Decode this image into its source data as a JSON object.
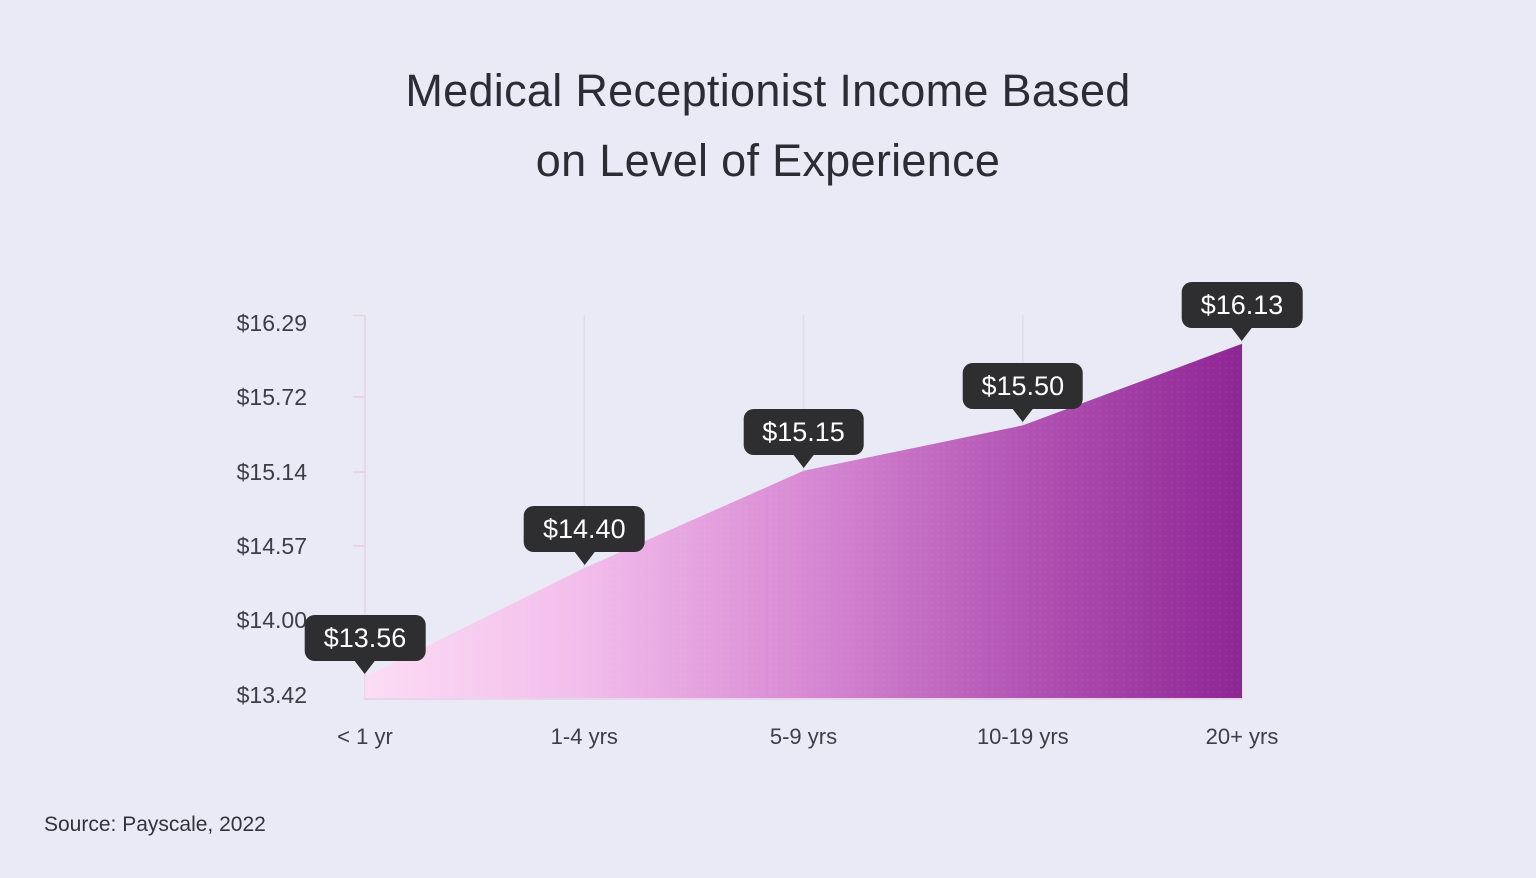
{
  "page": {
    "title_line1": "Medical Receptionist Income Based",
    "title_line2": "on Level of Experience",
    "source": "Source: Payscale, 2022",
    "background": "#eaeaf6"
  },
  "chart_data": {
    "type": "area",
    "title": "Medical Receptionist Income Based on Level of Experience",
    "categories": [
      "< 1 yr",
      "1-4 yrs",
      "5-9 yrs",
      "10-19 yrs",
      "20+ yrs"
    ],
    "values": [
      13.56,
      14.4,
      15.15,
      15.5,
      16.13
    ],
    "value_labels": [
      "$13.56",
      "$14.40",
      "$15.15",
      "$15.50",
      "$16.13"
    ],
    "yticks": [
      16.29,
      15.72,
      15.14,
      14.57,
      14.0,
      13.42
    ],
    "ytick_labels": [
      "$16.29",
      "$15.72",
      "$15.14",
      "$14.57",
      "$14.00",
      "$13.42"
    ],
    "ylim": [
      13.42,
      16.29
    ],
    "xlabel": "",
    "ylabel": "",
    "grid": "vertical category gridlines",
    "legend": "none",
    "source": "Source: Payscale, 2022",
    "colors": {
      "area_gradient": [
        "#fcdcf5",
        "#f2bdeb",
        "#d88ad4",
        "#b254b4",
        "#8e2594"
      ],
      "tooltip_bg": "#2e2d2f",
      "tooltip_text": "#ffffff",
      "gridline": "#dedbec",
      "axis_line": "#e7d2e2",
      "tick_mark": "#eccade",
      "baseline": "#e6d6ea",
      "label_text": "#3d3d47",
      "title_text": "#2c2c35"
    }
  }
}
